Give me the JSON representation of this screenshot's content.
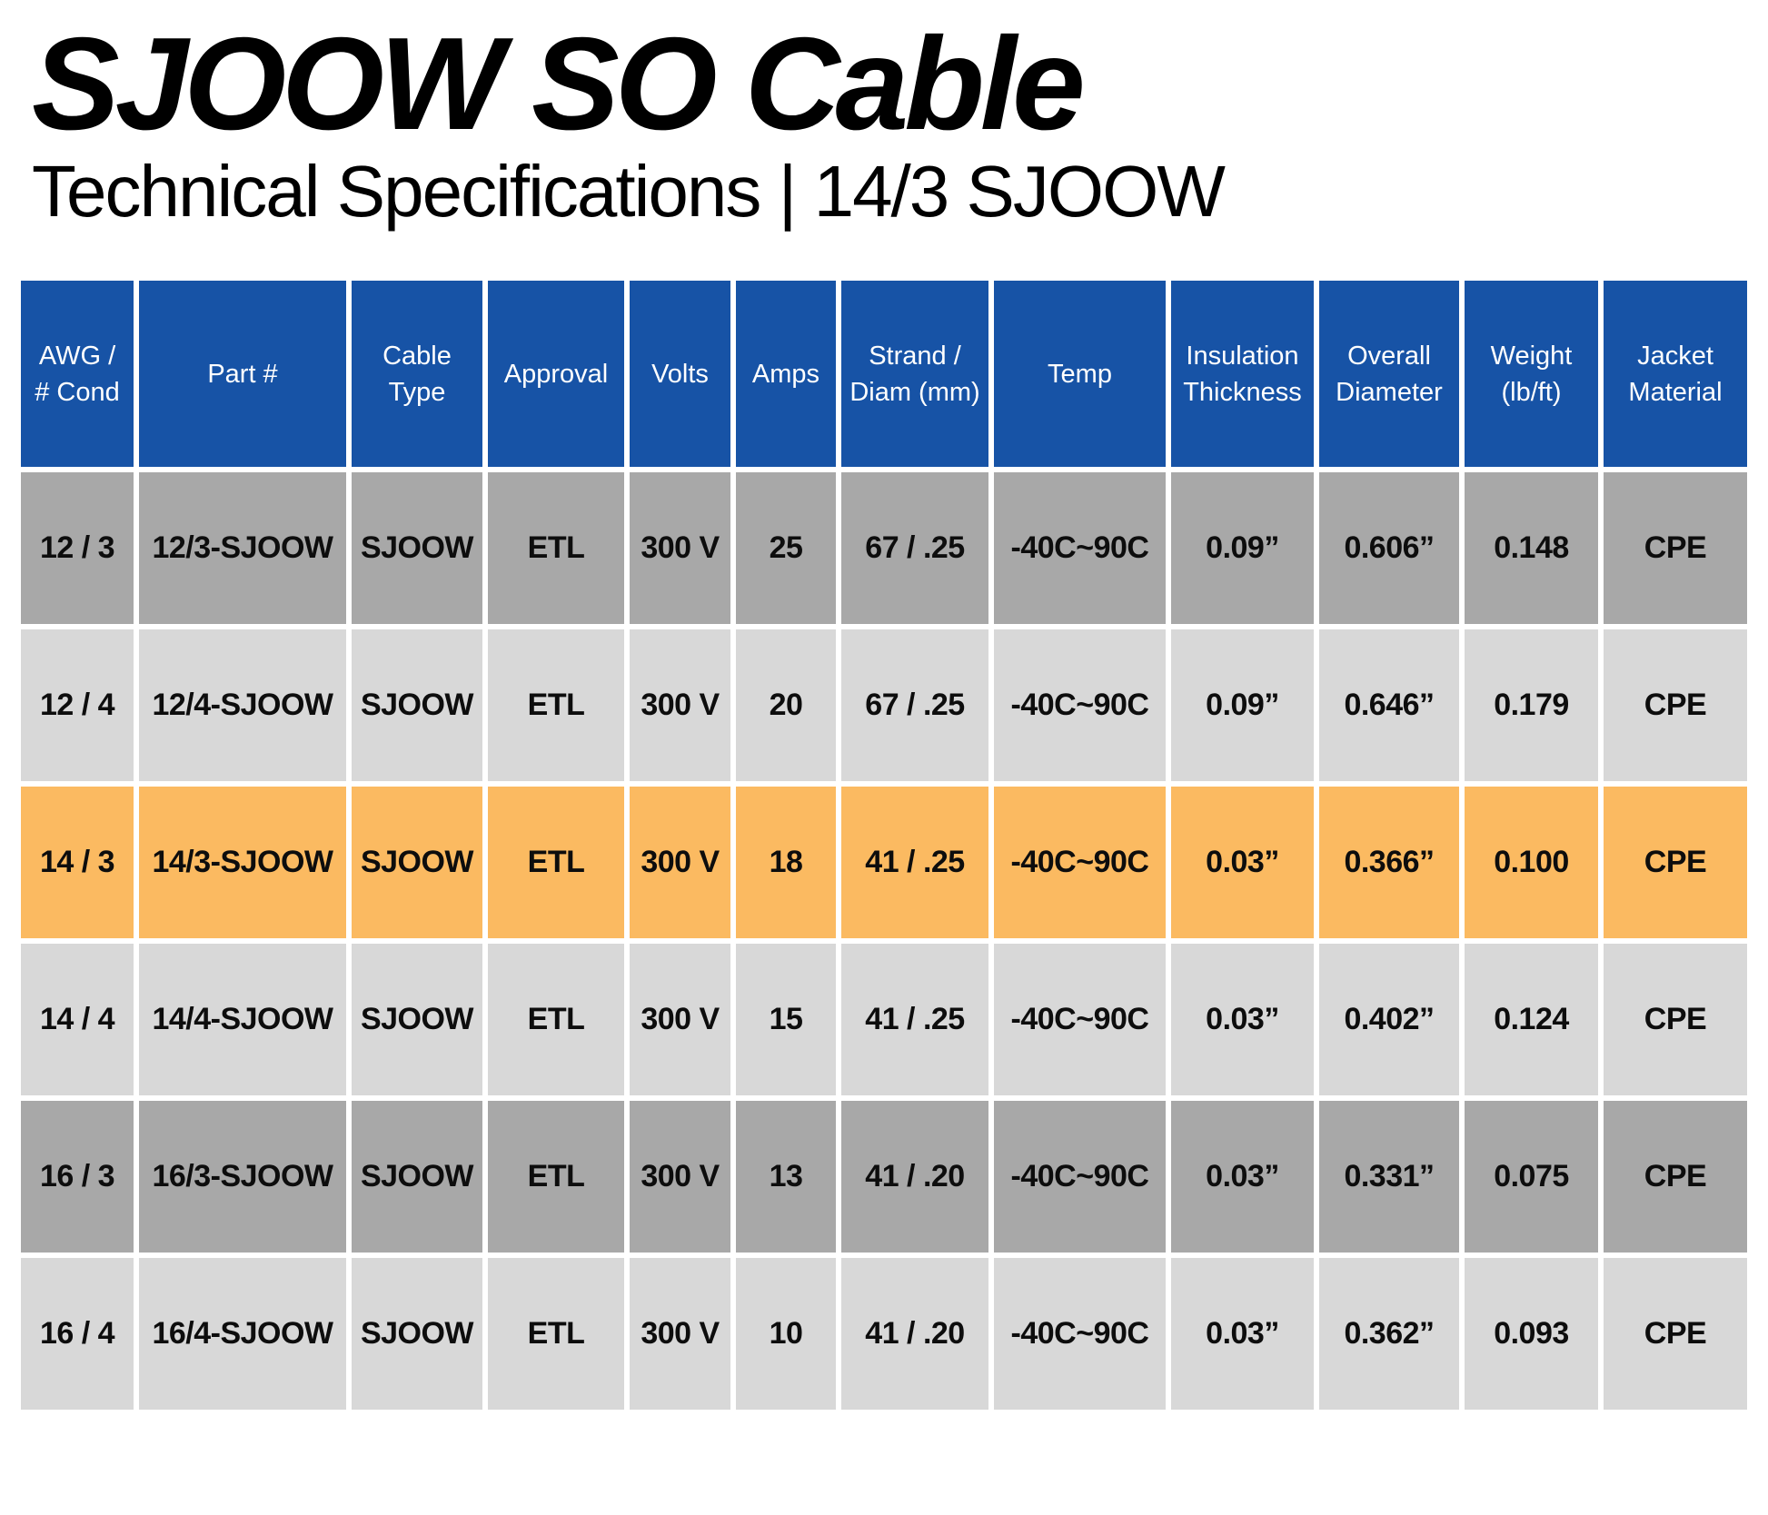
{
  "page": {
    "title": "SJOOW SO Cable",
    "subtitle": "Technical Specifications | 14/3 SJOOW"
  },
  "colors": {
    "header_bg": "#1753A6",
    "header_text": "#FFFFFF",
    "row_dark": "#A8A8A8",
    "row_light": "#D8D8D8",
    "row_highlight": "#FBBA61",
    "cell_text": "#0D0D0D"
  },
  "table": {
    "columns": [
      "AWG / # Cond",
      "Part #",
      "Cable Type",
      "Approval",
      "Volts",
      "Amps",
      "Strand / Diam (mm)",
      "Temp",
      "Insulation Thickness",
      "Overall Diameter",
      "Weight (lb/ft)",
      "Jacket Material"
    ],
    "highlighted_part": "14/3-SJOOW",
    "rows": [
      {
        "shade": "dark",
        "cells": [
          "12 / 3",
          "12/3-SJOOW",
          "SJOOW",
          "ETL",
          "300 V",
          "25",
          "67 / .25",
          "-40C~90C",
          "0.09”",
          "0.606”",
          "0.148",
          "CPE"
        ]
      },
      {
        "shade": "light",
        "cells": [
          "12 / 4",
          "12/4-SJOOW",
          "SJOOW",
          "ETL",
          "300 V",
          "20",
          "67 / .25",
          "-40C~90C",
          "0.09”",
          "0.646”",
          "0.179",
          "CPE"
        ]
      },
      {
        "shade": "highlight",
        "cells": [
          "14 / 3",
          "14/3-SJOOW",
          "SJOOW",
          "ETL",
          "300 V",
          "18",
          "41 / .25",
          "-40C~90C",
          "0.03”",
          "0.366”",
          "0.100",
          "CPE"
        ]
      },
      {
        "shade": "light",
        "cells": [
          "14 / 4",
          "14/4-SJOOW",
          "SJOOW",
          "ETL",
          "300 V",
          "15",
          "41 / .25",
          "-40C~90C",
          "0.03”",
          "0.402”",
          "0.124",
          "CPE"
        ]
      },
      {
        "shade": "dark",
        "cells": [
          "16 / 3",
          "16/3-SJOOW",
          "SJOOW",
          "ETL",
          "300 V",
          "13",
          "41 / .20",
          "-40C~90C",
          "0.03”",
          "0.331”",
          "0.075",
          "CPE"
        ]
      },
      {
        "shade": "light",
        "cells": [
          "16 / 4",
          "16/4-SJOOW",
          "SJOOW",
          "ETL",
          "300 V",
          "10",
          "41 / .20",
          "-40C~90C",
          "0.03”",
          "0.362”",
          "0.093",
          "CPE"
        ]
      }
    ]
  }
}
